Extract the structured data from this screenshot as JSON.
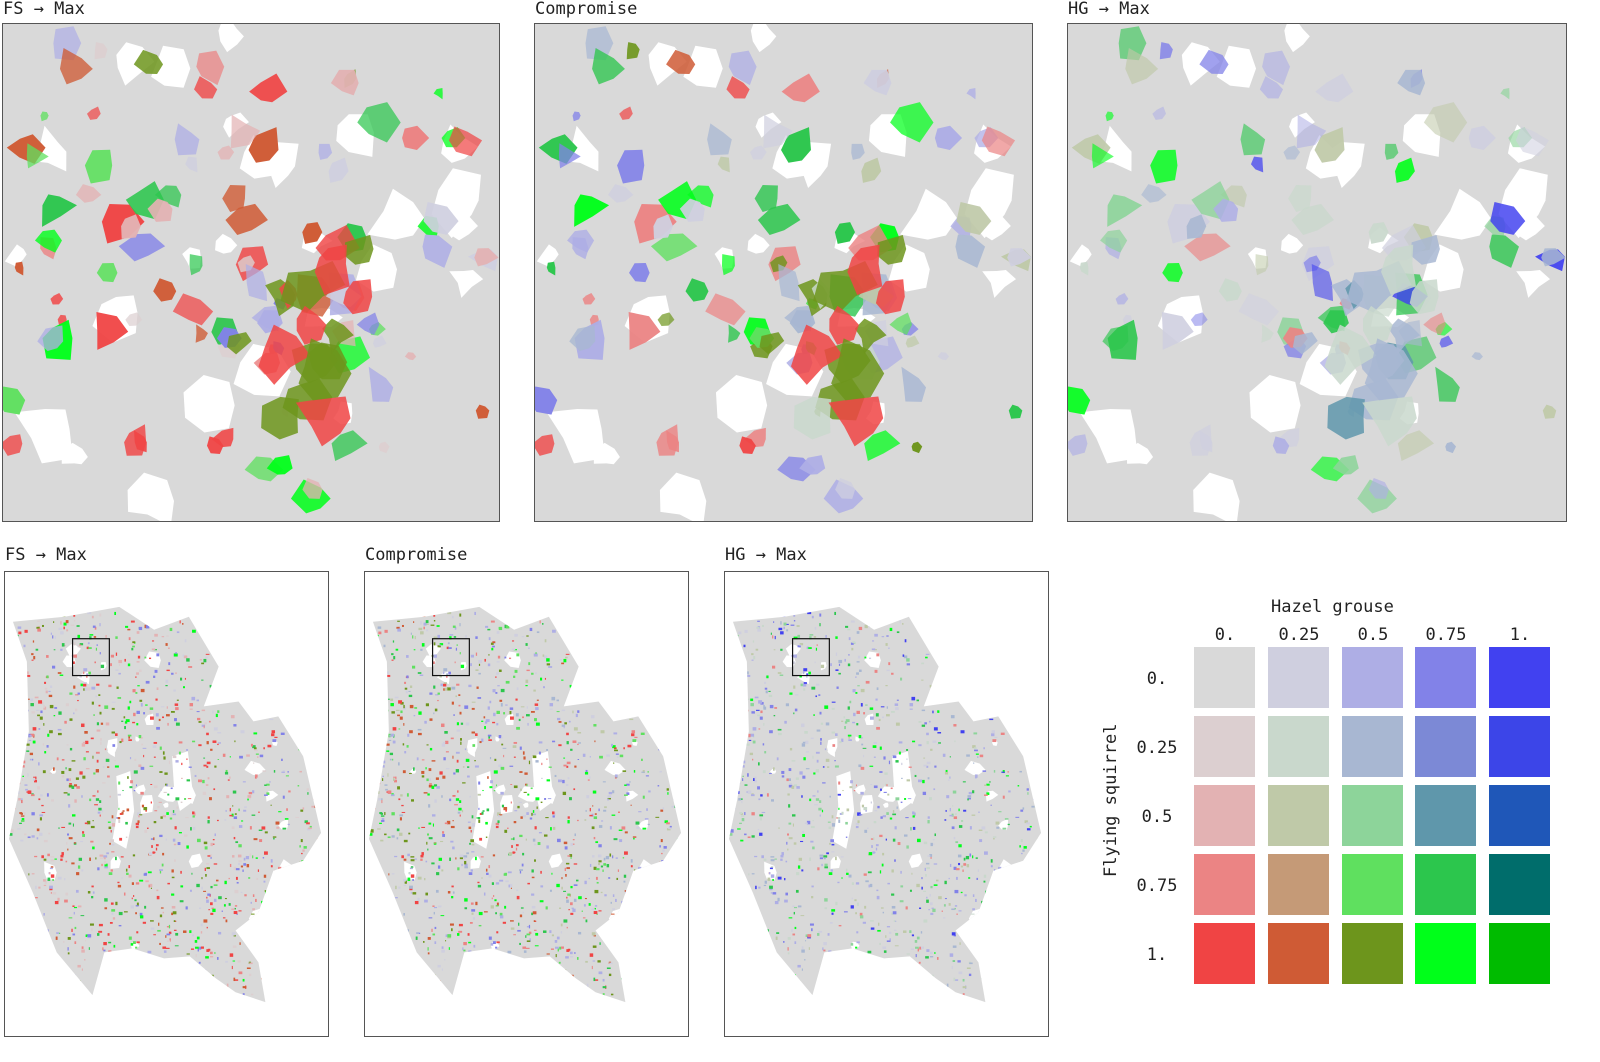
{
  "panels": {
    "top": [
      {
        "id": "top-fs",
        "title": "FS → Max",
        "mode": "fs"
      },
      {
        "id": "top-comp",
        "title": "Compromise",
        "mode": "comp"
      },
      {
        "id": "top-hg",
        "title": "HG → Max",
        "mode": "hg"
      }
    ],
    "bottom": [
      {
        "id": "bot-fs",
        "title": "FS → Max",
        "mode": "fs"
      },
      {
        "id": "bot-comp",
        "title": "Compromise",
        "mode": "comp"
      },
      {
        "id": "bot-hg",
        "title": "HG → Max",
        "mode": "hg"
      }
    ]
  },
  "legend": {
    "x_title": "Hazel grouse",
    "y_title": "Flying squirrel",
    "col_labels": [
      "0.",
      "0.25",
      "0.5",
      "0.75",
      "1."
    ],
    "row_labels": [
      "0.",
      "0.25",
      "0.5",
      "0.75",
      "1."
    ],
    "colors": [
      [
        "#d9d9d9",
        "#cfcfdf",
        "#aeaee5",
        "#8282e8",
        "#4141f0"
      ],
      [
        "#dccfd0",
        "#c9d8cc",
        "#a8b7d2",
        "#7c89d6",
        "#3c45e8"
      ],
      [
        "#e3b2b3",
        "#bfc9a8",
        "#8dd49a",
        "#5f97ab",
        "#1f57b8"
      ],
      [
        "#eb8484",
        "#c59a77",
        "#5fe05f",
        "#2cc64d",
        "#006d6b"
      ],
      [
        "#f04444",
        "#cf5b35",
        "#6d951c",
        "#00ff1a",
        "#00bb00"
      ]
    ]
  },
  "map_colors": {
    "background": "#d9d9d9",
    "gap": "#ffffff"
  }
}
